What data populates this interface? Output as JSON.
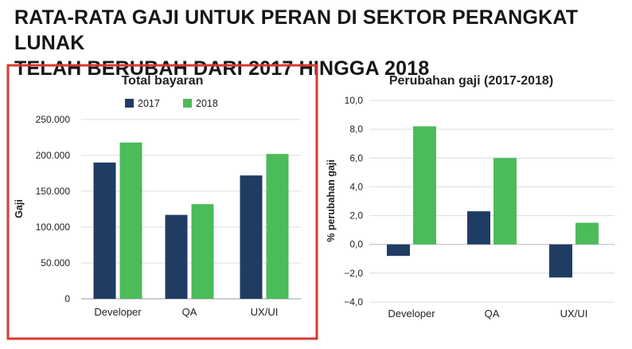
{
  "page": {
    "title_line1": "RATA-RATA GAJI UNTUK PERAN DI SEKTOR PERANGKAT LUNAK",
    "title_line2": "TELAH BERUBAH DARI 2017 HINGGA 2018"
  },
  "colors": {
    "series_2017": "#1f3d63",
    "series_2018": "#4cbb5a",
    "highlight_border": "#d93a2f",
    "grid": "#dcdcdc",
    "text": "#222222"
  },
  "chart_data": [
    {
      "type": "bar",
      "title": "Total bayaran",
      "xlabel": "",
      "ylabel": "Gaji",
      "categories": [
        "Developer",
        "QA",
        "UX/UI"
      ],
      "series": [
        {
          "name": "2017",
          "values": [
            190000,
            117000,
            172000
          ]
        },
        {
          "name": "2018",
          "values": [
            218000,
            132000,
            202000
          ]
        }
      ],
      "ylim": [
        0,
        250000
      ],
      "yticks": [
        0,
        50000,
        100000,
        150000,
        200000,
        250000
      ],
      "ytick_labels": [
        "0",
        "50.000",
        "100.000",
        "150.000",
        "200.000",
        "250.000"
      ],
      "legend": "top",
      "grid": true,
      "highlighted": true
    },
    {
      "type": "bar",
      "title": "Perubahan gaji (2017-2018)",
      "xlabel": "",
      "ylabel": "% perubahan gaji",
      "categories": [
        "Developer",
        "QA",
        "UX/UI"
      ],
      "series": [
        {
          "name": "2017",
          "values": [
            -0.8,
            2.3,
            -2.3
          ]
        },
        {
          "name": "2018",
          "values": [
            8.2,
            6.0,
            1.5
          ]
        }
      ],
      "ylim": [
        -4.0,
        10.0
      ],
      "yticks": [
        -4,
        -2,
        0,
        2,
        4,
        6,
        8,
        10
      ],
      "ytick_labels": [
        "−4,0",
        "−2,0",
        "0,0",
        "2,0",
        "4,0",
        "6,0",
        "8,0",
        "10,0"
      ],
      "legend": "none",
      "grid": true,
      "highlighted": false
    }
  ]
}
